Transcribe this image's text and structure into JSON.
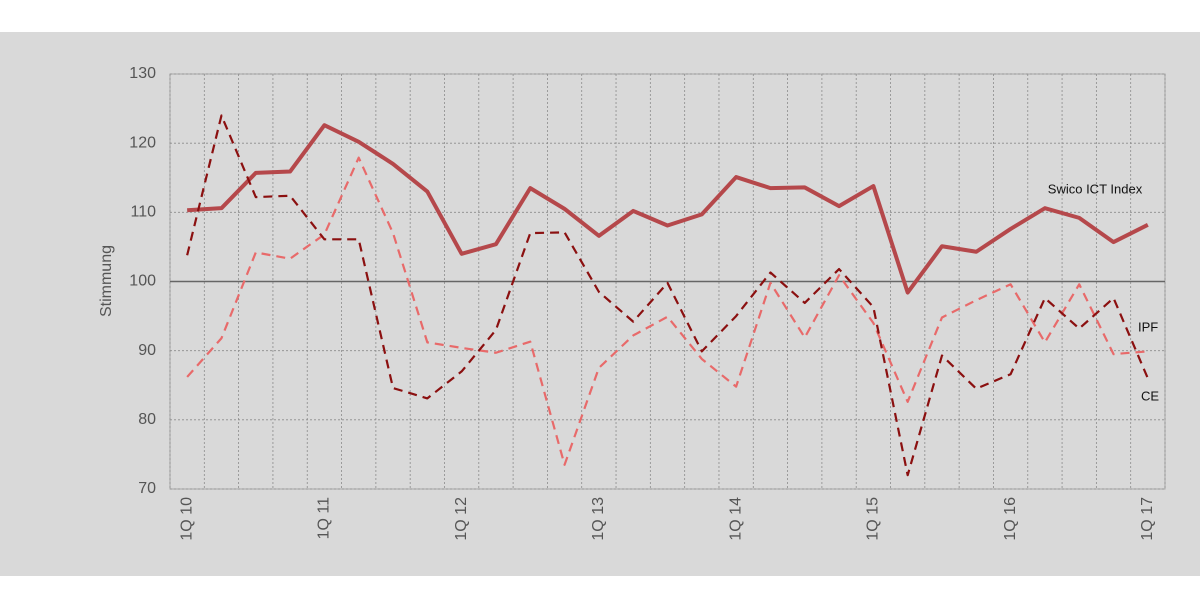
{
  "chart_data": {
    "type": "line",
    "y_label": "Stimmung",
    "categories": [
      "1Q 10",
      null,
      null,
      null,
      "1Q 11",
      null,
      null,
      null,
      "1Q 12",
      null,
      null,
      null,
      "1Q 13",
      null,
      null,
      null,
      "1Q 14",
      null,
      null,
      null,
      "1Q 15",
      null,
      null,
      null,
      "1Q 16",
      null,
      null,
      null,
      "1Q 17"
    ],
    "series": [
      {
        "name": "Swico ICT Index",
        "color": "#b5484b",
        "dash": false,
        "values": [
          110.3,
          110.6,
          115.7,
          115.9,
          122.6,
          120.2,
          117,
          113,
          104,
          105.4,
          113.5,
          110.5,
          106.6,
          110.2,
          108.1,
          109.7,
          115.1,
          113.5,
          113.6,
          110.9,
          113.8,
          98.4,
          105.1,
          104.3,
          107.6,
          110.6,
          109.2,
          105.7,
          108.2
        ]
      },
      {
        "name": "IPF",
        "color": "#e86a6a",
        "dash": true,
        "values": [
          86.2,
          91.8,
          104.2,
          103.3,
          106.8,
          117.9,
          107,
          91.2,
          90.4,
          89.7,
          91.3,
          73.5,
          87.5,
          92.2,
          94.9,
          88.8,
          84.8,
          99.8,
          91.9,
          100.9,
          94,
          82.6,
          94.8,
          97.3,
          99.6,
          91.2,
          99.6,
          89.5,
          89.9
        ]
      },
      {
        "name": "CE",
        "color": "#8b1010",
        "dash": true,
        "values": [
          103.8,
          124,
          112.2,
          112.4,
          106.1,
          106.1,
          84.6,
          83.1,
          87,
          93,
          107,
          107.1,
          98.5,
          94.2,
          99.8,
          89.9,
          95,
          101.3,
          96.9,
          101.8,
          96.3,
          72,
          89.3,
          84.5,
          86.6,
          97.6,
          93.2,
          97.6,
          86
        ]
      }
    ],
    "ylim": [
      70,
      130
    ],
    "yticks": [
      70,
      80,
      90,
      100,
      110,
      120,
      130
    ],
    "reference_line": 100,
    "grid": true
  }
}
